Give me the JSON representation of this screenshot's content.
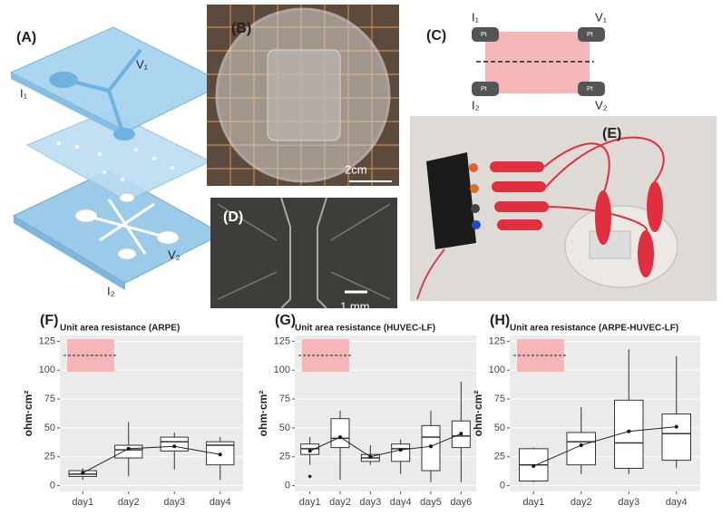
{
  "panels": {
    "A": {
      "label": "(A)",
      "v1": "V₁",
      "i1": "I₁",
      "v2": "V₂",
      "i2": "I₂"
    },
    "B": {
      "label": "(B)",
      "scale": "2cm"
    },
    "C": {
      "label": "(C)",
      "i1": "I₁",
      "v1": "V₁",
      "i2": "I₂",
      "v2": "V₂",
      "pt": [
        "Pt",
        "Pt",
        "Pt",
        "Pt"
      ]
    },
    "D": {
      "label": "(D)",
      "scale": "1 mm"
    },
    "E": {
      "label": "(E)"
    }
  },
  "chart_data": [
    {
      "type": "box",
      "panel": "(F)",
      "title": "Unit area resistance (ARPE)",
      "y_label": "ohm·cm²",
      "categories": [
        "day1",
        "day2",
        "day3",
        "day4"
      ],
      "boxes": [
        {
          "min": 5,
          "q1": 8,
          "median": 10,
          "q3": 13,
          "max": 15,
          "mean": 11
        },
        {
          "min": 8,
          "q1": 24,
          "median": 31,
          "q3": 35,
          "max": 55,
          "mean": 32
        },
        {
          "min": 14,
          "q1": 30,
          "median": 38,
          "q3": 42,
          "max": 46,
          "mean": 34
        },
        {
          "min": 5,
          "q1": 18,
          "median": 35,
          "q3": 38,
          "max": 42,
          "mean": 27
        }
      ],
      "ylim": [
        -5,
        130
      ],
      "yticks": [
        0,
        25,
        50,
        75,
        100,
        125
      ],
      "grid": true
    },
    {
      "type": "box",
      "panel": "(G)",
      "title": "Unit area resistance (HUVEC-LF)",
      "y_label": "ohm·cm²",
      "categories": [
        "day1",
        "day2",
        "day3",
        "day4",
        "day5",
        "day6"
      ],
      "boxes": [
        {
          "min": 18,
          "q1": 27,
          "median": 32,
          "q3": 36,
          "max": 42,
          "mean": 30,
          "outliers": [
            8
          ]
        },
        {
          "min": 5,
          "q1": 33,
          "median": 41,
          "q3": 58,
          "max": 65,
          "mean": 42
        },
        {
          "min": 18,
          "q1": 21,
          "median": 24,
          "q3": 27,
          "max": 35,
          "mean": 25
        },
        {
          "min": 10,
          "q1": 21,
          "median": 32,
          "q3": 36,
          "max": 40,
          "mean": 31
        },
        {
          "min": 3,
          "q1": 13,
          "median": 42,
          "q3": 52,
          "max": 65,
          "mean": 34
        },
        {
          "min": 3,
          "q1": 33,
          "median": 43,
          "q3": 56,
          "max": 90,
          "mean": 45
        }
      ],
      "ylim": [
        -5,
        130
      ],
      "yticks": [
        0,
        25,
        50,
        75,
        100,
        125
      ],
      "grid": true
    },
    {
      "type": "box",
      "panel": "(H)",
      "title": "Unit area resistance (ARPE-HUVEC-LF)",
      "y_label": "ohm·cm²",
      "categories": [
        "day1",
        "day2",
        "day3",
        "day4"
      ],
      "boxes": [
        {
          "min": 3,
          "q1": 4,
          "median": 18,
          "q3": 32,
          "max": 33,
          "mean": 17
        },
        {
          "min": 10,
          "q1": 18,
          "median": 38,
          "q3": 46,
          "max": 68,
          "mean": 35
        },
        {
          "min": 10,
          "q1": 15,
          "median": 37,
          "q3": 74,
          "max": 118,
          "mean": 47
        },
        {
          "min": 15,
          "q1": 22,
          "median": 45,
          "q3": 62,
          "max": 112,
          "mean": 51
        }
      ],
      "ylim": [
        -5,
        130
      ],
      "yticks": [
        0,
        25,
        50,
        75,
        100,
        125
      ],
      "grid": true
    }
  ]
}
